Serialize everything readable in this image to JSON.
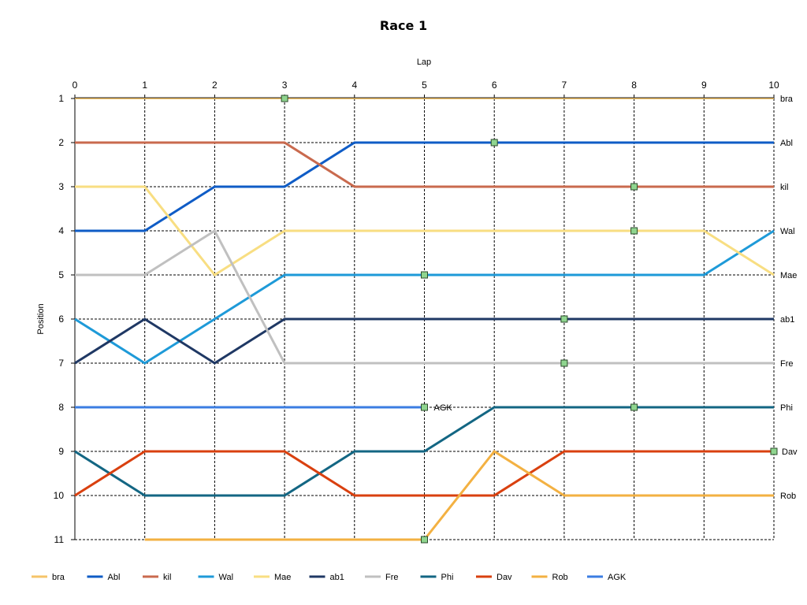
{
  "chart_data": {
    "type": "line",
    "title": "Race 1",
    "xlabel": "Lap",
    "ylabel": "Position",
    "xlim": [
      0,
      10
    ],
    "ylim": [
      1,
      11
    ],
    "y_inverted": true,
    "grid": "dashed",
    "x_ticks": [
      "0",
      "1",
      "2",
      "3",
      "4",
      "5",
      "6",
      "7",
      "8",
      "9",
      "10"
    ],
    "y_ticks": [
      "1",
      "2",
      "3",
      "4",
      "5",
      "6",
      "7",
      "8",
      "9",
      "10",
      "11"
    ],
    "legend_position": "bottom",
    "series": [
      {
        "name": "bra",
        "color": "#f5c469",
        "x": [
          0,
          1,
          2,
          3,
          4,
          5,
          6,
          7,
          8,
          9,
          10
        ],
        "y": [
          1,
          1,
          1,
          1,
          1,
          1,
          1,
          1,
          1,
          1,
          1
        ],
        "end_label": "bra",
        "marker_at": [
          3
        ]
      },
      {
        "name": "Abl",
        "color": "#0f5cc6",
        "x": [
          0,
          1,
          2,
          3,
          4,
          5,
          6,
          7,
          8,
          9,
          10
        ],
        "y": [
          4,
          4,
          3,
          3,
          2,
          2,
          2,
          2,
          2,
          2,
          2
        ],
        "end_label": "Abl",
        "marker_at": [
          6
        ]
      },
      {
        "name": "kil",
        "color": "#c96a4e",
        "x": [
          0,
          1,
          2,
          3,
          4,
          5,
          6,
          7,
          8,
          9,
          10
        ],
        "y": [
          2,
          2,
          2,
          2,
          3,
          3,
          3,
          3,
          3,
          3,
          3
        ],
        "end_label": "kil",
        "marker_at": [
          8
        ]
      },
      {
        "name": "Wal",
        "color": "#1e9ad8",
        "x": [
          0,
          1,
          2,
          3,
          4,
          5,
          6,
          7,
          8,
          9,
          10
        ],
        "y": [
          6,
          7,
          6,
          5,
          5,
          5,
          5,
          5,
          5,
          5,
          4
        ],
        "end_label": "Wal",
        "marker_at": [
          5
        ]
      },
      {
        "name": "Mae",
        "color": "#f8de82",
        "x": [
          0,
          1,
          2,
          3,
          4,
          5,
          6,
          7,
          8,
          9,
          10
        ],
        "y": [
          3,
          3,
          5,
          4,
          4,
          4,
          4,
          4,
          4,
          4,
          5
        ],
        "end_label": "Mae",
        "marker_at": [
          8
        ]
      },
      {
        "name": "ab1",
        "color": "#1f3864",
        "x": [
          0,
          1,
          2,
          3,
          4,
          5,
          6,
          7,
          8,
          9,
          10
        ],
        "y": [
          7,
          6,
          7,
          6,
          6,
          6,
          6,
          6,
          6,
          6,
          6
        ],
        "end_label": "ab1",
        "marker_at": [
          7
        ]
      },
      {
        "name": "Fre",
        "color": "#c0c0c0",
        "x": [
          0,
          1,
          2,
          3,
          4,
          5,
          6,
          7,
          8,
          9,
          10
        ],
        "y": [
          5,
          5,
          4,
          7,
          7,
          7,
          7,
          7,
          7,
          7,
          7
        ],
        "end_label": "Fre",
        "marker_at": [
          7
        ]
      },
      {
        "name": "Phi",
        "color": "#136683",
        "x": [
          0,
          1,
          2,
          3,
          4,
          5,
          6,
          7,
          8,
          9,
          10
        ],
        "y": [
          9,
          10,
          10,
          10,
          9,
          9,
          8,
          8,
          8,
          8,
          8
        ],
        "end_label": "Phi",
        "marker_at": [
          8
        ]
      },
      {
        "name": "Dav",
        "color": "#d9400f",
        "x": [
          0,
          1,
          2,
          3,
          4,
          5,
          6,
          7,
          8,
          9,
          10
        ],
        "y": [
          10,
          9,
          9,
          9,
          10,
          10,
          10,
          9,
          9,
          9,
          9
        ],
        "end_label": "Dav",
        "marker_at": [
          10
        ]
      },
      {
        "name": "Rob",
        "color": "#f3b142",
        "x": [
          1,
          2,
          3,
          4,
          5,
          6,
          7,
          8,
          9,
          10
        ],
        "y": [
          11,
          11,
          11,
          11,
          11,
          9,
          10,
          10,
          10,
          10
        ],
        "end_label": "Rob",
        "marker_at": [
          5
        ]
      },
      {
        "name": "AGK",
        "color": "#3b7de2",
        "x": [
          0,
          1,
          2,
          3,
          4,
          5
        ],
        "y": [
          8,
          8,
          8,
          8,
          8,
          8
        ],
        "end_label": "AGK",
        "marker_at": [
          5
        ]
      }
    ]
  }
}
